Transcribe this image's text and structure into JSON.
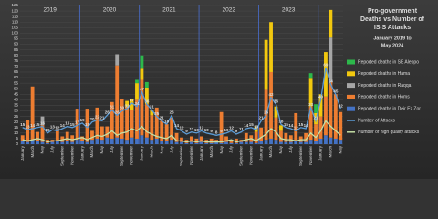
{
  "chart_data": {
    "type": "stacked_bar_line",
    "title": [
      "Pro-government",
      "Deaths vs Number of",
      "ISIS Attacks"
    ],
    "subtitle": [
      "January 2019 to",
      "May 2024"
    ],
    "year_labels": [
      "2019",
      "2020",
      "2021",
      "2022",
      "2023"
    ],
    "categories": [
      "January",
      null,
      "March",
      null,
      "May",
      null,
      "July",
      null,
      "September",
      null,
      "November",
      null,
      "January",
      null,
      "March",
      null,
      "May",
      null,
      "July",
      null,
      "September",
      null,
      "November",
      null,
      "January",
      null,
      "March",
      null,
      "May",
      null,
      "July",
      null,
      "September",
      null,
      "November",
      null,
      "January",
      null,
      "March",
      null,
      "May",
      null,
      "July",
      null,
      "September",
      null,
      "November",
      null,
      "January",
      null,
      "March",
      null,
      "May",
      null,
      "July",
      null,
      "September",
      null,
      "November",
      null,
      "January",
      null,
      "March",
      null,
      "May"
    ],
    "series": [
      {
        "name": "Reported deaths in SE Aleppo",
        "color": "#2db84b",
        "kind": "bar",
        "values": [
          0,
          0,
          0,
          0,
          0,
          0,
          0,
          0,
          0,
          0,
          0,
          0,
          0,
          0,
          0,
          0,
          0,
          0,
          0,
          0,
          0,
          0,
          0,
          3,
          12,
          5,
          0,
          0,
          0,
          0,
          0,
          0,
          0,
          0,
          0,
          0,
          0,
          0,
          0,
          0,
          0,
          0,
          0,
          0,
          0,
          0,
          0,
          0,
          0,
          0,
          0,
          0,
          0,
          0,
          0,
          0,
          0,
          0,
          5,
          8,
          0,
          0,
          0,
          0,
          0
        ]
      },
      {
        "name": "Reported deaths in Hama",
        "color": "#f2c80f",
        "kind": "bar",
        "values": [
          0,
          0,
          0,
          0,
          0,
          0,
          0,
          0,
          0,
          0,
          0,
          0,
          0,
          0,
          0,
          0,
          0,
          0,
          0,
          0,
          0,
          5,
          10,
          15,
          10,
          15,
          5,
          0,
          0,
          0,
          0,
          0,
          0,
          0,
          0,
          0,
          0,
          0,
          0,
          0,
          0,
          0,
          0,
          0,
          0,
          0,
          0,
          5,
          0,
          45,
          45,
          10,
          5,
          0,
          0,
          0,
          0,
          0,
          25,
          10,
          20,
          40,
          25,
          0,
          0
        ]
      },
      {
        "name": "Reported deaths in Raqqa",
        "color": "#a6a6a6",
        "kind": "bar",
        "values": [
          0,
          0,
          0,
          0,
          8,
          0,
          0,
          0,
          0,
          0,
          0,
          0,
          0,
          0,
          0,
          0,
          0,
          0,
          0,
          10,
          0,
          0,
          0,
          0,
          0,
          0,
          0,
          0,
          0,
          0,
          0,
          0,
          0,
          0,
          0,
          0,
          0,
          0,
          0,
          0,
          0,
          0,
          0,
          0,
          0,
          0,
          0,
          0,
          0,
          0,
          0,
          0,
          0,
          0,
          0,
          0,
          0,
          0,
          0,
          0,
          0,
          0,
          40,
          0,
          0
        ]
      },
      {
        "name": "Reported deaths in Homs",
        "color": "#ed7d31",
        "kind": "bar",
        "values": [
          5,
          20,
          48,
          8,
          15,
          3,
          2,
          10,
          5,
          8,
          6,
          28,
          4,
          30,
          8,
          28,
          12,
          10,
          33,
          65,
          36,
          30,
          25,
          35,
          50,
          30,
          22,
          28,
          18,
          15,
          20,
          8,
          4,
          3,
          5,
          4,
          5,
          3,
          4,
          2,
          28,
          5,
          3,
          4,
          2,
          8,
          6,
          10,
          12,
          45,
          60,
          20,
          10,
          8,
          6,
          25,
          5,
          8,
          30,
          15,
          20,
          35,
          50,
          40,
          25
        ]
      },
      {
        "name": "Reported deaths in Deir Ez Zor",
        "color": "#4472c4",
        "kind": "bar",
        "values": [
          3,
          2,
          4,
          3,
          2,
          1,
          2,
          3,
          2,
          3,
          2,
          4,
          3,
          2,
          4,
          5,
          4,
          6,
          5,
          6,
          5,
          4,
          6,
          5,
          8,
          6,
          4,
          5,
          3,
          3,
          4,
          2,
          2,
          1,
          2,
          1,
          2,
          1,
          1,
          2,
          1,
          2,
          1,
          1,
          2,
          2,
          2,
          1,
          3,
          4,
          5,
          4,
          2,
          2,
          2,
          3,
          2,
          2,
          4,
          3,
          5,
          8,
          6,
          5,
          4
        ]
      },
      {
        "name": "Number of Attacks",
        "color": "#5b9bd5",
        "kind": "line",
        "labels": true,
        "values": [
          15,
          13,
          14,
          15,
          16,
          10,
          13,
          12,
          14,
          16,
          15,
          17,
          19,
          15,
          20,
          22,
          21,
          26,
          31,
          26,
          30,
          32,
          37,
          34,
          47,
          36,
          31,
          25,
          21,
          18,
          26,
          14,
          12,
          9,
          11,
          10,
          12,
          10,
          9,
          8,
          9,
          10,
          12,
          9,
          11,
          14,
          15,
          13,
          21,
          26,
          42,
          36,
          18,
          15,
          14,
          12,
          15,
          14,
          33,
          21,
          40,
          69,
          54,
          45,
          32
        ]
      },
      {
        "name": "Number of high quality attacks",
        "color": "#c5e0a5",
        "kind": "line",
        "values": [
          4,
          3,
          4,
          5,
          4,
          2,
          3,
          3,
          4,
          5,
          4,
          5,
          6,
          4,
          6,
          8,
          7,
          9,
          12,
          8,
          10,
          11,
          14,
          12,
          16,
          11,
          9,
          7,
          6,
          5,
          8,
          3,
          3,
          2,
          3,
          2,
          3,
          2,
          2,
          2,
          2,
          3,
          4,
          2,
          3,
          4,
          5,
          3,
          6,
          9,
          14,
          11,
          5,
          4,
          4,
          3,
          4,
          4,
          10,
          6,
          12,
          21,
          16,
          12,
          8
        ]
      }
    ],
    "ylim": [
      0,
      125
    ],
    "yticks": [
      0,
      5,
      10,
      15,
      20,
      25,
      30,
      35,
      40,
      45,
      50,
      55,
      60,
      65,
      70,
      75,
      80,
      85,
      90,
      95,
      100,
      105,
      110,
      115,
      120,
      125
    ],
    "grid": true
  }
}
